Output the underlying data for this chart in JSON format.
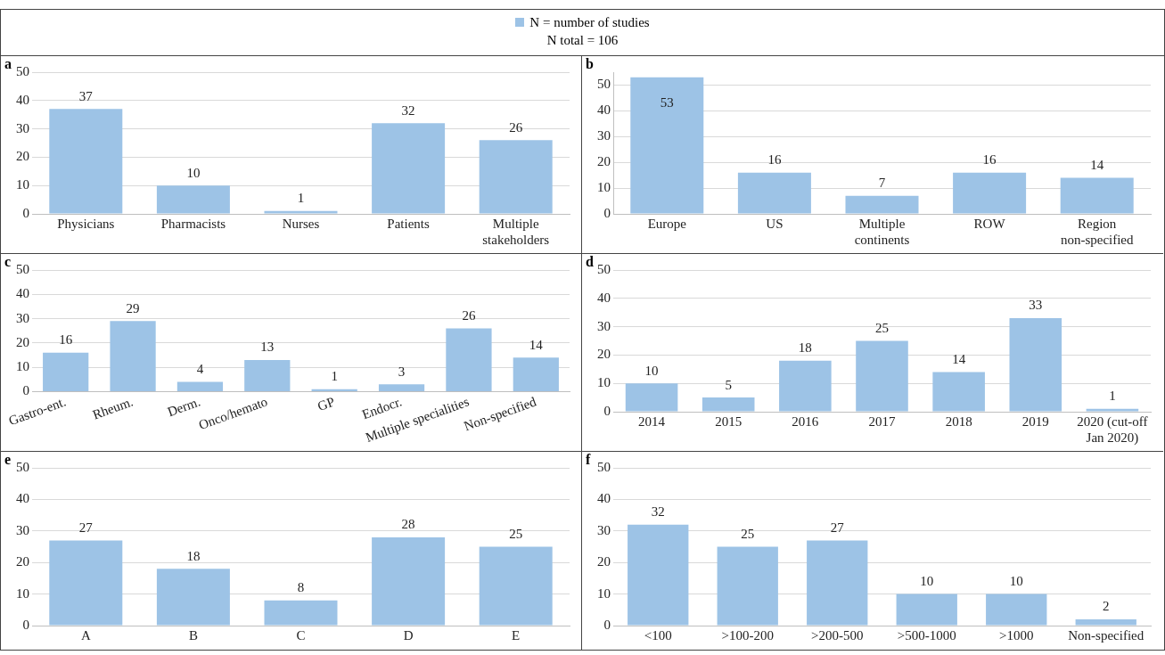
{
  "chart_data": [
    {
      "type": "bar",
      "title": "a",
      "categories": [
        "Physicians",
        "Pharmacists",
        "Nurses",
        "Patients",
        "Multiple stakeholders"
      ],
      "series": [
        {
          "name": "N = number of studies",
          "color": "#9dc3e6",
          "values": [
            37,
            10,
            1,
            32,
            26
          ]
        }
      ],
      "legend": "top",
      "annotations": [
        "N total = 106"
      ],
      "ylim": [
        0,
        50
      ],
      "yticks": [
        0,
        10,
        20,
        30,
        40,
        50
      ],
      "grid": "y",
      "data_labels": true
    },
    {
      "type": "bar",
      "title": "b",
      "categories": [
        "Europe",
        "US",
        "Multiple continents",
        "ROW",
        "Region non-specified"
      ],
      "series": [
        {
          "color": "#9dc3e6",
          "values": [
            53,
            16,
            7,
            16,
            14
          ]
        }
      ],
      "ylim": [
        0,
        55
      ],
      "yticks": [
        0,
        10,
        20,
        30,
        40,
        50
      ],
      "grid": "y",
      "data_labels": true
    },
    {
      "type": "bar",
      "title": "c",
      "categories": [
        "Gastro-ent.",
        "Rheum.",
        "Derm.",
        "Onco/hemato",
        "GP",
        "Endocr.",
        "Multiple specialities",
        "Non-specified"
      ],
      "series": [
        {
          "color": "#9dc3e6",
          "values": [
            16,
            29,
            4,
            13,
            1,
            3,
            26,
            14
          ]
        }
      ],
      "ylim": [
        0,
        50
      ],
      "yticks": [
        0,
        10,
        20,
        30,
        40,
        50
      ],
      "grid": "y",
      "data_labels": true
    },
    {
      "type": "bar",
      "title": "d",
      "categories": [
        "2014",
        "2015",
        "2016",
        "2017",
        "2018",
        "2019",
        "2020 (cut-off Jan 2020)"
      ],
      "series": [
        {
          "color": "#9dc3e6",
          "values": [
            10,
            5,
            18,
            25,
            14,
            33,
            1
          ]
        }
      ],
      "ylim": [
        0,
        50
      ],
      "yticks": [
        0,
        10,
        20,
        30,
        40,
        50
      ],
      "grid": "y",
      "data_labels": true
    },
    {
      "type": "bar",
      "title": "e",
      "categories": [
        "A",
        "B",
        "C",
        "D",
        "E"
      ],
      "series": [
        {
          "color": "#9dc3e6",
          "values": [
            27,
            18,
            8,
            28,
            25
          ]
        }
      ],
      "ylim": [
        0,
        50
      ],
      "yticks": [
        0,
        10,
        20,
        30,
        40,
        50
      ],
      "grid": "y",
      "data_labels": true
    },
    {
      "type": "bar",
      "title": "f",
      "categories": [
        "<100",
        ">100-200",
        ">200-500",
        ">500-1000",
        ">1000",
        "Non-specified"
      ],
      "series": [
        {
          "color": "#9dc3e6",
          "values": [
            32,
            25,
            27,
            10,
            10,
            2
          ]
        }
      ],
      "ylim": [
        0,
        50
      ],
      "yticks": [
        0,
        10,
        20,
        30,
        40,
        50
      ],
      "grid": "y",
      "data_labels": true
    }
  ]
}
